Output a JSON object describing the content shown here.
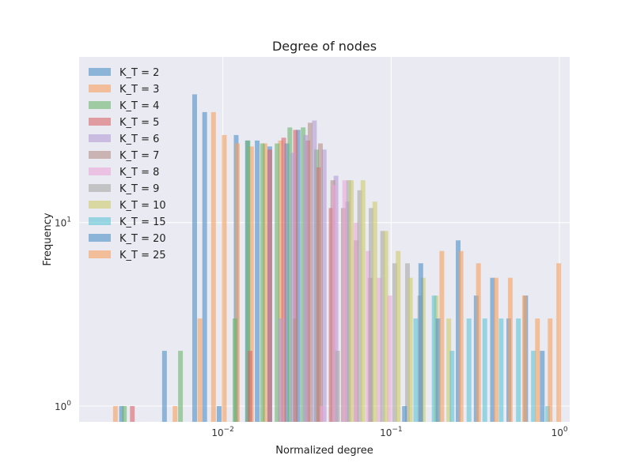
{
  "chart_data": {
    "type": "bar",
    "title": "Degree of nodes",
    "xlabel": "Normalized degree",
    "ylabel": "Frequency",
    "xscale": "log",
    "yscale": "log",
    "xlim": [
      0.0014,
      1.15
    ],
    "ylim": [
      0.82,
      80
    ],
    "grid": true,
    "legend_position": "top-left",
    "xticks": [
      {
        "value": 0.01,
        "base": "10",
        "exp": "−2"
      },
      {
        "value": 0.1,
        "base": "10",
        "exp": "−1"
      },
      {
        "value": 1,
        "base": "10",
        "exp": "0"
      }
    ],
    "yticks": [
      {
        "value": 1,
        "base": "10",
        "exp": "0"
      },
      {
        "value": 10,
        "base": "10",
        "exp": "1"
      }
    ],
    "series": [
      {
        "name": "K_T = 2",
        "color": "#4c8fc8",
        "bars": [
          [
            0.0025,
            1
          ],
          [
            0.0045,
            2
          ],
          [
            0.0068,
            50
          ],
          [
            0.0078,
            40
          ],
          [
            0.0095,
            1
          ],
          [
            0.012,
            30
          ],
          [
            0.014,
            28
          ],
          [
            0.016,
            28
          ],
          [
            0.019,
            26
          ],
          [
            0.024,
            27
          ],
          [
            0.028,
            32
          ]
        ]
      },
      {
        "name": "K_T = 3",
        "color": "#f5a05e",
        "bars": [
          [
            0.0023,
            1
          ],
          [
            0.0052,
            1
          ],
          [
            0.0073,
            3
          ],
          [
            0.0088,
            40
          ],
          [
            0.0102,
            30
          ],
          [
            0.0122,
            27
          ],
          [
            0.0148,
            26
          ],
          [
            0.0178,
            27
          ],
          [
            0.022,
            28
          ]
        ]
      },
      {
        "name": "K_T = 4",
        "color": "#6bb56b",
        "bars": [
          [
            0.0026,
            1
          ],
          [
            0.0056,
            2
          ],
          [
            0.0118,
            3
          ],
          [
            0.0141,
            28
          ],
          [
            0.0172,
            27
          ],
          [
            0.021,
            27
          ],
          [
            0.025,
            33
          ],
          [
            0.03,
            33
          ],
          [
            0.036,
            25
          ]
        ]
      },
      {
        "name": "K_T = 5",
        "color": "#d9666a",
        "bars": [
          [
            0.0029,
            1
          ],
          [
            0.0145,
            2
          ],
          [
            0.019,
            25
          ],
          [
            0.023,
            29
          ],
          [
            0.027,
            32
          ],
          [
            0.032,
            28
          ],
          [
            0.037,
            20
          ],
          [
            0.044,
            12
          ]
        ]
      },
      {
        "name": "K_T = 6",
        "color": "#b39cd4",
        "bars": [
          [
            0.022,
            3
          ],
          [
            0.026,
            24
          ],
          [
            0.031,
            30
          ],
          [
            0.035,
            36
          ],
          [
            0.04,
            25
          ],
          [
            0.047,
            18
          ],
          [
            0.055,
            13
          ]
        ]
      },
      {
        "name": "K_T = 7",
        "color": "#b38e89",
        "bars": [
          [
            0.027,
            3
          ],
          [
            0.033,
            35
          ],
          [
            0.038,
            27
          ],
          [
            0.045,
            17
          ],
          [
            0.052,
            12
          ],
          [
            0.062,
            8
          ],
          [
            0.075,
            5
          ]
        ]
      },
      {
        "name": "K_T = 8",
        "color": "#eba6d8",
        "bars": [
          [
            0.039,
            1
          ],
          [
            0.046,
            16
          ],
          [
            0.053,
            17
          ],
          [
            0.062,
            10
          ],
          [
            0.073,
            7
          ],
          [
            0.085,
            5
          ],
          [
            0.098,
            4
          ]
        ]
      },
      {
        "name": "K_T = 9",
        "color": "#a9a9a9",
        "bars": [
          [
            0.048,
            2
          ],
          [
            0.056,
            17
          ],
          [
            0.065,
            15
          ],
          [
            0.076,
            12
          ],
          [
            0.089,
            9
          ],
          [
            0.105,
            6
          ],
          [
            0.125,
            6
          ],
          [
            0.148,
            4
          ]
        ]
      },
      {
        "name": "K_T = 10",
        "color": "#cdcc6b",
        "bars": [
          [
            0.058,
            17
          ],
          [
            0.068,
            17
          ],
          [
            0.08,
            13
          ],
          [
            0.093,
            9
          ],
          [
            0.11,
            7
          ],
          [
            0.13,
            5
          ],
          [
            0.155,
            5
          ],
          [
            0.185,
            4
          ],
          [
            0.22,
            3
          ]
        ]
      },
      {
        "name": "K_T = 15",
        "color": "#5dc4d6",
        "bars": [
          [
            0.14,
            3
          ],
          [
            0.18,
            4
          ],
          [
            0.23,
            2
          ],
          [
            0.29,
            3
          ],
          [
            0.36,
            3
          ],
          [
            0.45,
            3
          ],
          [
            0.57,
            3
          ],
          [
            0.7,
            2
          ],
          [
            0.85,
            1
          ]
        ]
      },
      {
        "name": "K_T = 20",
        "color": "#4c8fc8",
        "bars": [
          [
            0.12,
            1
          ],
          [
            0.15,
            6
          ],
          [
            0.19,
            3
          ],
          [
            0.25,
            8
          ],
          [
            0.32,
            4
          ],
          [
            0.4,
            5
          ],
          [
            0.5,
            3
          ],
          [
            0.63,
            4
          ],
          [
            0.79,
            2
          ]
        ]
      },
      {
        "name": "K_T = 25",
        "color": "#f5a05e",
        "bars": [
          [
            0.2,
            7
          ],
          [
            0.26,
            7
          ],
          [
            0.33,
            6
          ],
          [
            0.42,
            5
          ],
          [
            0.51,
            5
          ],
          [
            0.62,
            4
          ],
          [
            0.74,
            3
          ],
          [
            0.88,
            3
          ],
          [
            0.99,
            6
          ]
        ]
      }
    ]
  }
}
